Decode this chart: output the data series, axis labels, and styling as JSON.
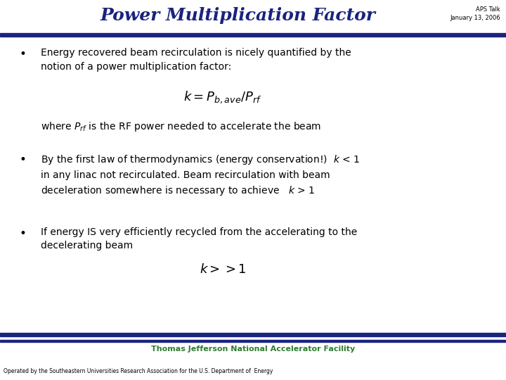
{
  "title": "Power Multiplication Factor",
  "title_color": "#1a237e",
  "title_fontsize": 18,
  "subtitle_line1": "APS Talk",
  "subtitle_line2": "January 13, 2006",
  "subtitle_color": "#000000",
  "subtitle_fontsize": 6,
  "bg_color": "#f0f0f0",
  "slide_bg": "#ffffff",
  "header_bar_color": "#1a237e",
  "footer_bar_color": "#1a237e",
  "bullet_color": "#000000",
  "bullet_fontsize": 10,
  "formula1": "$k = P_{b,ave} / P_{rf}$",
  "formula1_fontsize": 13,
  "formula2": "$k >> 1$",
  "formula2_fontsize": 13,
  "footer_text": "Thomas Jefferson National Accelerator Facility",
  "footer_color": "#2e7d32",
  "footer_fontsize": 8,
  "footer_sub": "Operated by the Southeastern Universities Research Association for the U.S. Department of  Energy",
  "footer_sub_fontsize": 5.5
}
